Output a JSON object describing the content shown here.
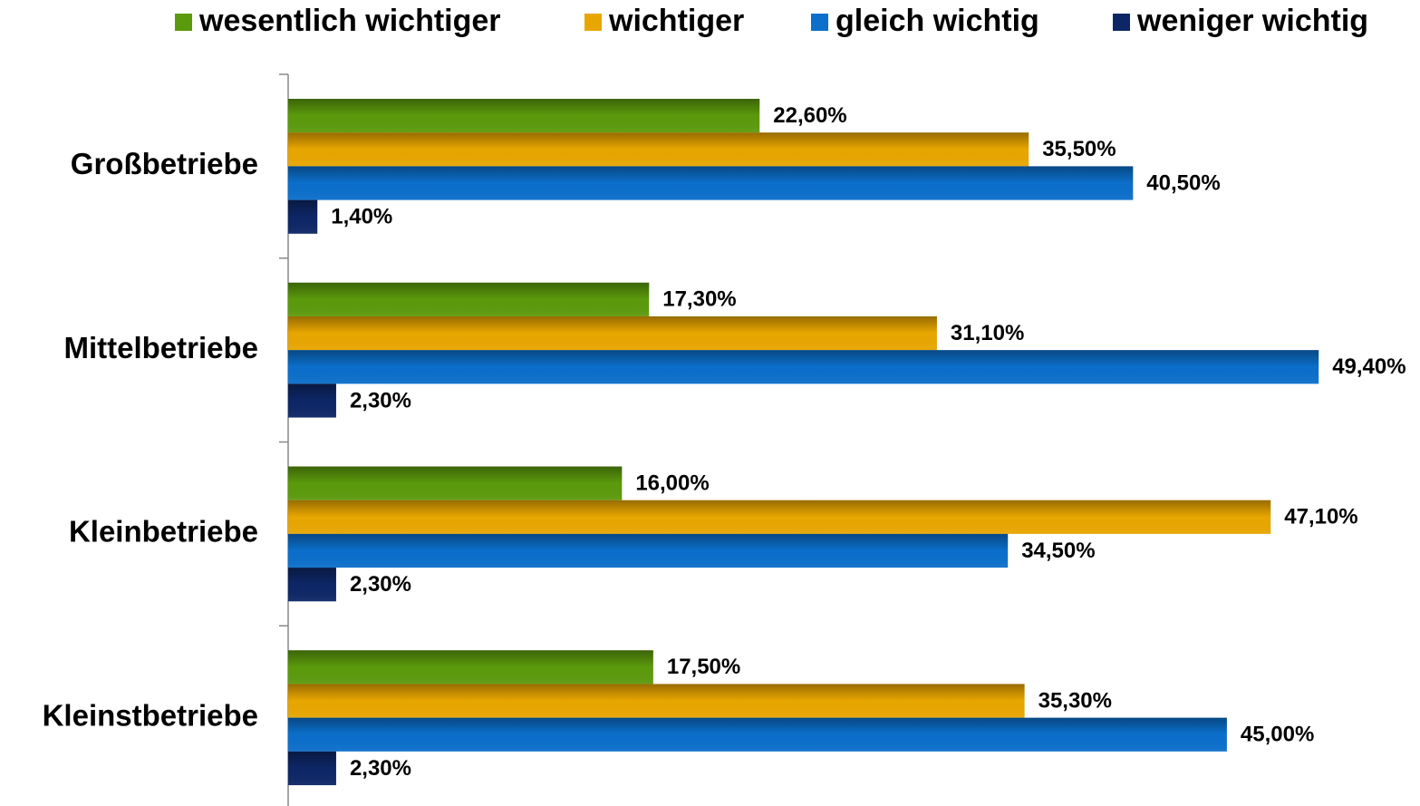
{
  "chart_data": {
    "type": "bar",
    "orientation": "horizontal",
    "categories": [
      "Großbetriebe",
      "Mittelbetriebe",
      "Kleinbetriebe",
      "Kleinstbetriebe"
    ],
    "series": [
      {
        "name": "wesentlich wichtiger",
        "color": "#5b9a0c",
        "values": [
          22.6,
          17.3,
          16.0,
          17.5
        ],
        "value_labels": [
          "22,60%",
          "17,30%",
          "16,00%",
          "17,50%"
        ]
      },
      {
        "name": "wichtiger",
        "color": "#e8a600",
        "values": [
          35.5,
          31.1,
          47.1,
          35.3
        ],
        "value_labels": [
          "35,50%",
          "31,10%",
          "47,10%",
          "35,30%"
        ]
      },
      {
        "name": "gleich wichtig",
        "color": "#0b6fcb",
        "values": [
          40.5,
          49.4,
          34.5,
          45.0
        ],
        "value_labels": [
          "40,50%",
          "49,40%",
          "34,50%",
          "45,00%"
        ]
      },
      {
        "name": "weniger wichtig",
        "color": "#0d2766",
        "values": [
          1.4,
          2.3,
          2.3,
          2.3
        ],
        "value_labels": [
          "1,40%",
          "2,30%",
          "2,30%",
          "2,30%"
        ]
      }
    ]
  }
}
